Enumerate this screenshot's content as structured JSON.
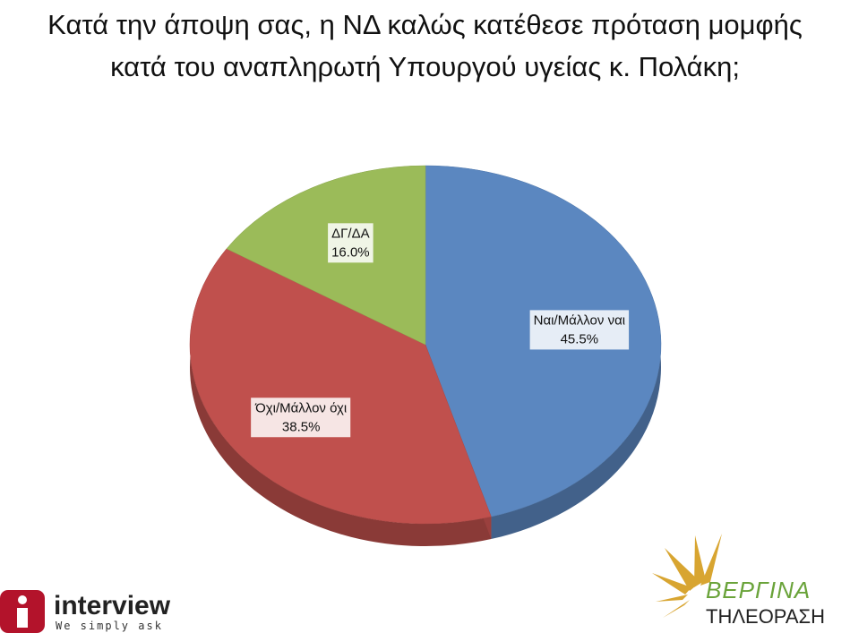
{
  "chart_data": {
    "type": "pie",
    "title": "Κατά την άποψη σας, η ΝΔ καλώς κατέθεσε πρόταση μομφής κατά του αναπληρωτή Υπουργού υγείας κ. Πολάκη;",
    "categories": [
      "Ναι/Μάλλον ναι",
      "Όχι/Μάλλον όχι",
      "ΔΓ/ΔΑ"
    ],
    "values": [
      45.5,
      38.5,
      16.0
    ],
    "value_labels": [
      "45.5%",
      "38.5%",
      "16.0%"
    ],
    "colors": [
      "#5b87c0",
      "#c0504d",
      "#9bbb59"
    ]
  },
  "footer": {
    "left_logo": {
      "name": "interview",
      "slogan": "We simply ask"
    },
    "right_logo": {
      "name": "ΒΕΡΓΙΝΑ",
      "subtitle": "ΤΗΛΕΟΡΑΣΗ"
    }
  }
}
